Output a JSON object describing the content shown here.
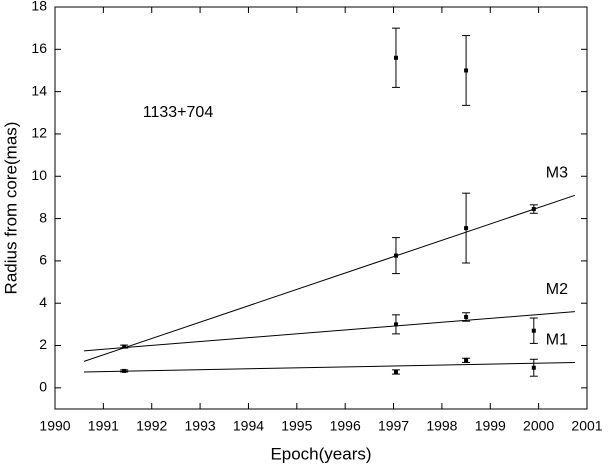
{
  "chart_data": {
    "type": "scatter",
    "annotation": "1133+704",
    "xlabel": "Epoch(years)",
    "ylabel": "Radius from core(mas)",
    "xlim": [
      1990,
      2001
    ],
    "ylim": [
      -1,
      18
    ],
    "xticks": [
      1990,
      1991,
      1992,
      1993,
      1994,
      1995,
      1996,
      1997,
      1998,
      1999,
      2000,
      2001
    ],
    "yticks": [
      0,
      2,
      4,
      6,
      8,
      10,
      12,
      14,
      16,
      18
    ],
    "color": "#000000",
    "series": [
      {
        "name": "M3",
        "x": [
          1997.05,
          1998.5,
          1999.9
        ],
        "values": [
          6.25,
          7.55,
          8.45
        ],
        "errors": [
          0.85,
          1.65,
          0.2
        ],
        "fit": {
          "x": [
            1990.6,
            2000.75
          ],
          "y": [
            1.25,
            9.1
          ]
        }
      },
      {
        "name": "M2",
        "x": [
          1991.43,
          1997.05,
          1998.5,
          1999.9
        ],
        "values": [
          1.95,
          3.0,
          3.35,
          2.7
        ],
        "errors": [
          0.07,
          0.45,
          0.2,
          0.6
        ],
        "fit": {
          "x": [
            1990.6,
            2000.75
          ],
          "y": [
            1.75,
            3.6
          ]
        }
      },
      {
        "name": "M1",
        "x": [
          1991.43,
          1997.05,
          1998.5,
          1999.9
        ],
        "values": [
          0.8,
          0.75,
          1.3,
          0.95
        ],
        "errors": [
          0.05,
          0.1,
          0.1,
          0.4
        ],
        "fit": {
          "x": [
            1990.6,
            2000.75
          ],
          "y": [
            0.75,
            1.2
          ]
        }
      },
      {
        "x": [
          1997.05,
          1998.5
        ],
        "values": [
          15.6,
          15.0
        ],
        "errors": [
          1.4,
          1.65
        ]
      }
    ]
  }
}
